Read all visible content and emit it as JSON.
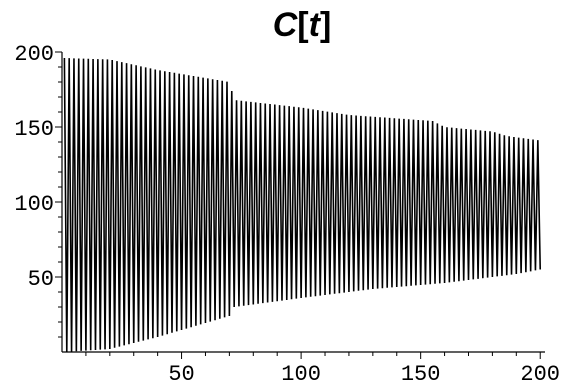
{
  "chart_data": {
    "type": "line",
    "title_parts": [
      "C",
      "[",
      "t",
      "]"
    ],
    "xlabel": "",
    "ylabel": "",
    "xlim": [
      0,
      202
    ],
    "ylim": [
      0,
      200
    ],
    "x_ticks": [
      50,
      100,
      150,
      200
    ],
    "y_ticks": [
      50,
      100,
      150,
      200
    ],
    "x_tick_labels": [
      "50",
      "100",
      "150",
      "200"
    ],
    "y_tick_labels": [
      "50",
      "100",
      "150",
      "200"
    ],
    "grid": false,
    "series": [
      {
        "color": "#000000",
        "oscillation_period": 2,
        "upper_envelope": [
          [
            1,
            196
          ],
          [
            20,
            195
          ],
          [
            40,
            188
          ],
          [
            70,
            180
          ],
          [
            72,
            168
          ],
          [
            100,
            163
          ],
          [
            120,
            158
          ],
          [
            155,
            154
          ],
          [
            160,
            150
          ],
          [
            180,
            147
          ],
          [
            186,
            144
          ],
          [
            200,
            141
          ]
        ],
        "lower_envelope": [
          [
            1,
            0
          ],
          [
            20,
            2
          ],
          [
            40,
            10
          ],
          [
            70,
            24
          ],
          [
            72,
            30
          ],
          [
            100,
            36
          ],
          [
            130,
            42
          ],
          [
            160,
            46
          ],
          [
            190,
            52
          ],
          [
            200,
            55
          ]
        ]
      }
    ]
  }
}
